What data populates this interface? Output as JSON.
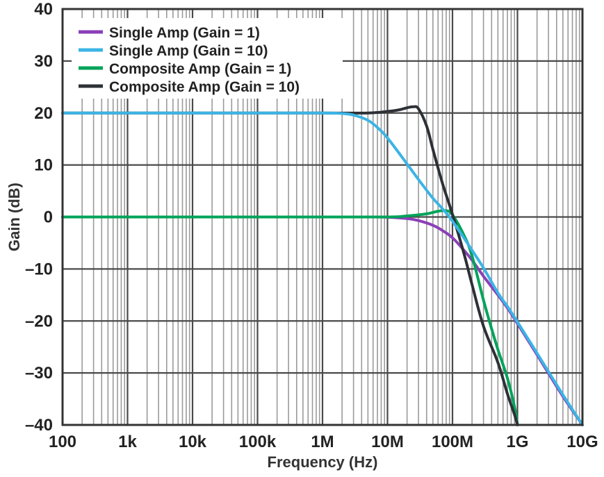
{
  "chart_data": {
    "type": "line",
    "xlabel": "Frequency (Hz)",
    "ylabel": "Gain (dB)",
    "xscale": "log",
    "xlim": [
      100,
      10000000000
    ],
    "ylim": [
      -40,
      40
    ],
    "grid": true,
    "legend_position": "top-left",
    "x_ticks": [
      {
        "value": 100,
        "label": "100"
      },
      {
        "value": 1000,
        "label": "1k"
      },
      {
        "value": 10000,
        "label": "10k"
      },
      {
        "value": 100000,
        "label": "100k"
      },
      {
        "value": 1000000,
        "label": "1M"
      },
      {
        "value": 10000000,
        "label": "10M"
      },
      {
        "value": 100000000,
        "label": "100M"
      },
      {
        "value": 1000000000,
        "label": "1G"
      },
      {
        "value": 10000000000,
        "label": "10G"
      }
    ],
    "y_ticks": [
      {
        "value": 40,
        "label": "40"
      },
      {
        "value": 30,
        "label": "30"
      },
      {
        "value": 20,
        "label": "20"
      },
      {
        "value": 10,
        "label": "10"
      },
      {
        "value": 0,
        "label": "0"
      },
      {
        "value": -10,
        "label": "–10"
      },
      {
        "value": -20,
        "label": "–20"
      },
      {
        "value": -30,
        "label": "–30"
      },
      {
        "value": -40,
        "label": "–40"
      }
    ],
    "series": [
      {
        "name": "Single Amp (Gain = 1)",
        "color": "#8b3fb8",
        "points": [
          [
            100,
            0
          ],
          [
            1000,
            0
          ],
          [
            10000,
            0
          ],
          [
            100000,
            0
          ],
          [
            1000000,
            0
          ],
          [
            5000000,
            0
          ],
          [
            10000000,
            -0.05
          ],
          [
            20000000,
            -0.3
          ],
          [
            30000000,
            -0.7
          ],
          [
            50000000,
            -1.6
          ],
          [
            70000000,
            -2.6
          ],
          [
            100000000,
            -4
          ],
          [
            150000000,
            -6.4
          ],
          [
            200000000,
            -8.3
          ],
          [
            300000000,
            -11.4
          ],
          [
            500000000,
            -15
          ],
          [
            700000000,
            -17.5
          ],
          [
            1000000000,
            -20.5
          ],
          [
            2000000000,
            -26.5
          ],
          [
            5000000000,
            -34.5
          ],
          [
            10000000000,
            -40
          ]
        ]
      },
      {
        "name": "Single Amp (Gain = 10)",
        "color": "#3cb4e5",
        "points": [
          [
            100,
            20
          ],
          [
            1000,
            20
          ],
          [
            10000,
            20
          ],
          [
            100000,
            20
          ],
          [
            1000000,
            20
          ],
          [
            2000000,
            19.9
          ],
          [
            3000000,
            19.6
          ],
          [
            5000000,
            18.6
          ],
          [
            7000000,
            17.2
          ],
          [
            10000000,
            15.2
          ],
          [
            20000000,
            10.2
          ],
          [
            30000000,
            7.2
          ],
          [
            50000000,
            3.6
          ],
          [
            70000000,
            1.6
          ],
          [
            100000000,
            -0.8
          ],
          [
            200000000,
            -6.4
          ],
          [
            300000000,
            -9.8
          ],
          [
            500000000,
            -14.6
          ],
          [
            700000000,
            -17.2
          ],
          [
            1000000000,
            -20.2
          ],
          [
            2000000000,
            -26.2
          ],
          [
            5000000000,
            -34.2
          ],
          [
            10000000000,
            -40
          ]
        ]
      },
      {
        "name": "Composite Amp (Gain = 1)",
        "color": "#00a35a",
        "points": [
          [
            100,
            0
          ],
          [
            1000,
            0
          ],
          [
            10000,
            0
          ],
          [
            100000,
            0
          ],
          [
            1000000,
            0
          ],
          [
            10000000,
            0
          ],
          [
            20000000,
            0.2
          ],
          [
            40000000,
            0.6
          ],
          [
            60000000,
            1.1
          ],
          [
            80000000,
            1.2
          ],
          [
            100000000,
            0.4
          ],
          [
            150000000,
            -3.5
          ],
          [
            200000000,
            -7.5
          ],
          [
            300000000,
            -16
          ],
          [
            400000000,
            -21.5
          ],
          [
            500000000,
            -25.5
          ],
          [
            700000000,
            -31
          ],
          [
            900000000,
            -36.5
          ],
          [
            1000000000,
            -40
          ]
        ]
      },
      {
        "name": "Composite Amp (Gain = 10)",
        "color": "#2d3136",
        "points": [
          [
            100,
            20
          ],
          [
            1000,
            20
          ],
          [
            10000,
            20
          ],
          [
            100000,
            20
          ],
          [
            1000000,
            20
          ],
          [
            5000000,
            20
          ],
          [
            10000000,
            20.3
          ],
          [
            15000000,
            20.6
          ],
          [
            20000000,
            21
          ],
          [
            25000000,
            21.2
          ],
          [
            30000000,
            20.8
          ],
          [
            40000000,
            17.5
          ],
          [
            50000000,
            13
          ],
          [
            70000000,
            6.5
          ],
          [
            100000000,
            0.5
          ],
          [
            150000000,
            -7
          ],
          [
            200000000,
            -13
          ],
          [
            300000000,
            -21
          ],
          [
            500000000,
            -28
          ],
          [
            700000000,
            -34
          ],
          [
            900000000,
            -38
          ],
          [
            1000000000,
            -40
          ]
        ]
      }
    ]
  }
}
